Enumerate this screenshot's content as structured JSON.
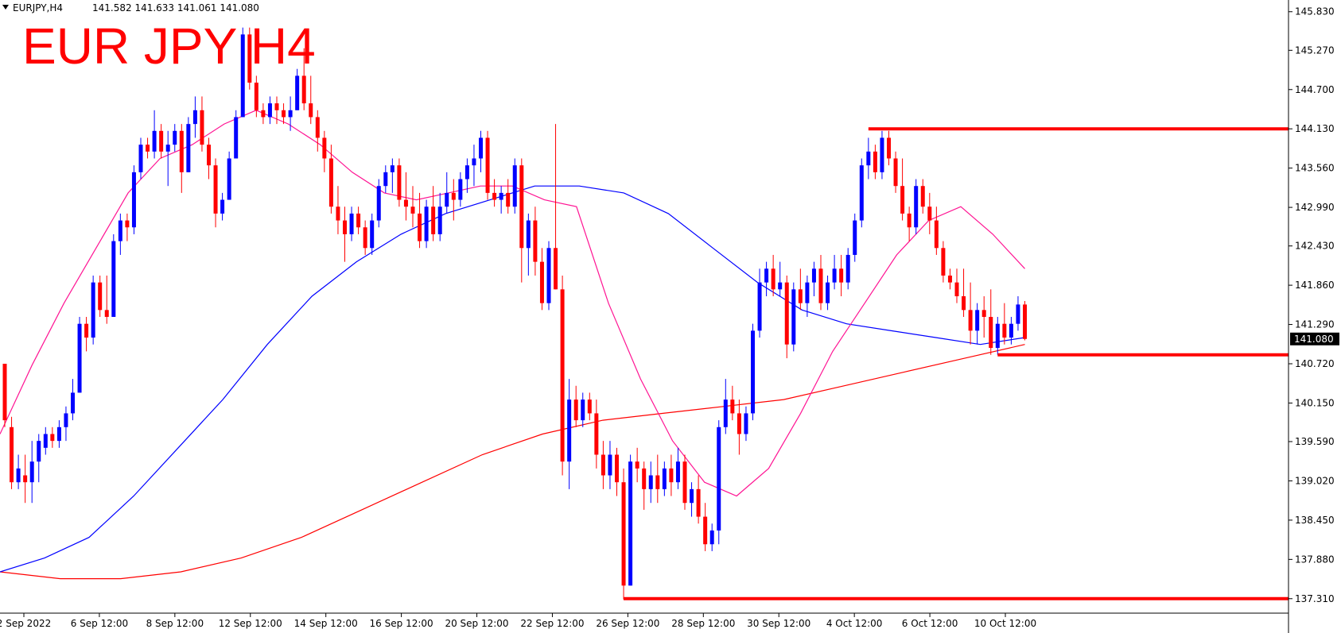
{
  "header": {
    "symbol_label": "EURJPY,H4",
    "ohlc": "141.582 141.633 141.061 141.080"
  },
  "chart_data": {
    "type": "candlestick",
    "title": "EUR JPY H4",
    "instrument": "EURJPY",
    "timeframe": "H4",
    "current_price": "141.080",
    "ylim": [
      137.1,
      146.0
    ],
    "y_ticks": [
      "145.830",
      "145.270",
      "144.700",
      "144.130",
      "143.560",
      "142.990",
      "142.430",
      "141.860",
      "141.290",
      "140.720",
      "140.150",
      "139.590",
      "139.020",
      "138.450",
      "137.880",
      "137.310"
    ],
    "x_ticks": [
      "2 Sep 2022",
      "6 Sep 12:00",
      "8 Sep 12:00",
      "12 Sep 12:00",
      "14 Sep 12:00",
      "16 Sep 12:00",
      "20 Sep 12:00",
      "22 Sep 12:00",
      "26 Sep 12:00",
      "28 Sep 12:00",
      "30 Sep 12:00",
      "4 Oct 12:00",
      "6 Oct 12:00",
      "10 Oct 12:00"
    ],
    "colors": {
      "bull": "#0000ff",
      "bear": "#ff0000",
      "ma_fast": "#ff1493",
      "ma_mid": "#0000ff",
      "ma_slow": "#ff0000",
      "levels": "#ff0000"
    },
    "candles": [
      [
        140.72,
        140.72,
        139.8,
        139.9
      ],
      [
        139.8,
        139.95,
        138.9,
        139.0
      ],
      [
        139.0,
        139.4,
        138.9,
        139.2
      ],
      [
        139.1,
        139.4,
        138.7,
        139.0
      ],
      [
        139.0,
        139.6,
        138.7,
        139.3
      ],
      [
        139.3,
        139.7,
        139.0,
        139.6
      ],
      [
        139.5,
        139.8,
        139.4,
        139.7
      ],
      [
        139.7,
        139.8,
        139.5,
        139.6
      ],
      [
        139.6,
        139.9,
        139.5,
        139.8
      ],
      [
        139.8,
        140.1,
        139.6,
        140.0
      ],
      [
        140.0,
        140.5,
        139.9,
        140.3
      ],
      [
        140.3,
        141.4,
        140.3,
        141.3
      ],
      [
        141.3,
        141.4,
        140.9,
        141.1
      ],
      [
        141.1,
        142.0,
        141.0,
        141.9
      ],
      [
        141.9,
        142.0,
        141.4,
        141.5
      ],
      [
        141.5,
        142.0,
        141.3,
        141.4
      ],
      [
        141.4,
        142.6,
        141.4,
        142.5
      ],
      [
        142.5,
        142.9,
        142.3,
        142.8
      ],
      [
        142.8,
        142.9,
        142.5,
        142.7
      ],
      [
        142.7,
        143.6,
        142.6,
        143.5
      ],
      [
        143.5,
        144.0,
        143.4,
        143.9
      ],
      [
        143.9,
        144.0,
        143.7,
        143.8
      ],
      [
        143.8,
        144.4,
        143.7,
        144.1
      ],
      [
        144.1,
        144.2,
        143.7,
        143.8
      ],
      [
        143.8,
        144.1,
        143.3,
        143.9
      ],
      [
        143.9,
        144.2,
        143.8,
        144.1
      ],
      [
        144.1,
        144.2,
        143.2,
        143.5
      ],
      [
        143.5,
        144.3,
        143.5,
        144.2
      ],
      [
        144.2,
        144.6,
        144.0,
        144.4
      ],
      [
        144.4,
        144.6,
        143.8,
        143.9
      ],
      [
        143.9,
        144.0,
        143.4,
        143.6
      ],
      [
        143.6,
        143.7,
        142.7,
        142.9
      ],
      [
        142.9,
        143.2,
        142.8,
        143.1
      ],
      [
        143.1,
        143.8,
        143.1,
        143.7
      ],
      [
        143.7,
        144.4,
        143.7,
        144.3
      ],
      [
        144.3,
        145.6,
        144.3,
        145.5
      ],
      [
        145.5,
        145.6,
        144.7,
        144.8
      ],
      [
        144.8,
        144.9,
        144.3,
        144.4
      ],
      [
        144.4,
        144.5,
        144.2,
        144.3
      ],
      [
        144.3,
        144.6,
        144.2,
        144.5
      ],
      [
        144.5,
        144.6,
        144.2,
        144.4
      ],
      [
        144.4,
        144.5,
        144.2,
        144.3
      ],
      [
        144.3,
        144.6,
        144.1,
        144.4
      ],
      [
        144.4,
        145.0,
        144.4,
        144.9
      ],
      [
        144.9,
        145.3,
        144.4,
        144.5
      ],
      [
        144.5,
        144.9,
        144.2,
        144.3
      ],
      [
        144.3,
        144.4,
        143.8,
        144.0
      ],
      [
        144.0,
        144.1,
        143.5,
        143.7
      ],
      [
        143.7,
        143.9,
        142.9,
        143.0
      ],
      [
        143.0,
        143.3,
        142.6,
        142.8
      ],
      [
        142.8,
        143.0,
        142.2,
        142.6
      ],
      [
        142.6,
        143.0,
        142.5,
        142.9
      ],
      [
        142.9,
        143.0,
        142.6,
        142.7
      ],
      [
        142.7,
        142.8,
        142.3,
        142.4
      ],
      [
        142.4,
        142.9,
        142.3,
        142.8
      ],
      [
        142.8,
        143.4,
        142.7,
        143.3
      ],
      [
        143.3,
        143.6,
        143.2,
        143.5
      ],
      [
        143.5,
        143.7,
        143.2,
        143.6
      ],
      [
        143.6,
        143.7,
        143.0,
        143.1
      ],
      [
        143.1,
        143.5,
        142.8,
        143.0
      ],
      [
        143.0,
        143.3,
        142.7,
        142.9
      ],
      [
        142.9,
        143.2,
        142.4,
        142.5
      ],
      [
        142.5,
        143.1,
        142.4,
        143.0
      ],
      [
        143.0,
        143.3,
        142.5,
        142.6
      ],
      [
        142.6,
        143.2,
        142.5,
        143.0
      ],
      [
        143.0,
        143.5,
        142.9,
        143.2
      ],
      [
        143.2,
        143.4,
        142.8,
        143.1
      ],
      [
        143.1,
        143.5,
        143.0,
        143.4
      ],
      [
        143.4,
        143.7,
        143.2,
        143.6
      ],
      [
        143.6,
        143.9,
        143.3,
        143.7
      ],
      [
        143.7,
        144.1,
        143.5,
        144.0
      ],
      [
        144.0,
        144.1,
        143.1,
        143.2
      ],
      [
        143.2,
        143.4,
        143.0,
        143.1
      ],
      [
        143.1,
        143.3,
        142.9,
        143.2
      ],
      [
        143.2,
        143.4,
        142.9,
        143.0
      ],
      [
        143.0,
        143.7,
        142.9,
        143.6
      ],
      [
        143.6,
        143.7,
        141.9,
        142.4
      ],
      [
        142.4,
        142.9,
        142.0,
        142.8
      ],
      [
        142.8,
        143.0,
        142.0,
        142.2
      ],
      [
        142.2,
        142.4,
        141.5,
        141.6
      ],
      [
        141.6,
        142.5,
        141.5,
        142.4
      ],
      [
        142.4,
        144.2,
        141.8,
        141.8
      ],
      [
        141.8,
        142.0,
        139.1,
        139.3
      ],
      [
        139.3,
        140.5,
        138.9,
        140.2
      ],
      [
        140.2,
        140.4,
        139.8,
        139.9
      ],
      [
        139.9,
        140.3,
        139.8,
        140.2
      ],
      [
        140.2,
        140.3,
        139.9,
        140.0
      ],
      [
        140.0,
        140.2,
        139.2,
        139.4
      ],
      [
        139.4,
        139.6,
        138.9,
        139.1
      ],
      [
        139.1,
        139.6,
        138.9,
        139.4
      ],
      [
        139.4,
        139.5,
        138.8,
        139.0
      ],
      [
        139.0,
        139.2,
        137.3,
        137.5
      ],
      [
        137.5,
        139.4,
        137.5,
        139.3
      ],
      [
        139.3,
        139.5,
        139.0,
        139.2
      ],
      [
        139.2,
        139.3,
        138.6,
        138.9
      ],
      [
        138.9,
        139.3,
        138.7,
        139.1
      ],
      [
        139.1,
        139.4,
        138.7,
        138.9
      ],
      [
        138.9,
        139.3,
        138.8,
        139.2
      ],
      [
        139.2,
        139.4,
        138.8,
        139.0
      ],
      [
        139.0,
        139.5,
        138.9,
        139.3
      ],
      [
        139.3,
        139.4,
        138.6,
        138.7
      ],
      [
        138.7,
        139.0,
        138.5,
        138.9
      ],
      [
        138.9,
        139.1,
        138.4,
        138.5
      ],
      [
        138.5,
        138.7,
        138.0,
        138.1
      ],
      [
        138.1,
        138.4,
        138.0,
        138.3
      ],
      [
        138.3,
        139.9,
        138.1,
        139.8
      ],
      [
        139.8,
        140.5,
        139.7,
        140.2
      ],
      [
        140.2,
        140.4,
        139.9,
        140.0
      ],
      [
        140.0,
        140.2,
        139.4,
        139.7
      ],
      [
        139.7,
        140.1,
        139.6,
        140.0
      ],
      [
        140.0,
        141.3,
        139.9,
        141.2
      ],
      [
        141.2,
        142.1,
        141.1,
        141.9
      ],
      [
        141.9,
        142.2,
        141.7,
        142.1
      ],
      [
        142.1,
        142.3,
        141.7,
        141.8
      ],
      [
        141.8,
        142.2,
        141.7,
        141.9
      ],
      [
        141.9,
        142.0,
        140.8,
        141.0
      ],
      [
        141.0,
        141.9,
        140.9,
        141.8
      ],
      [
        141.8,
        142.1,
        141.5,
        141.6
      ],
      [
        141.6,
        142.0,
        141.4,
        141.9
      ],
      [
        141.9,
        142.2,
        141.7,
        142.1
      ],
      [
        142.1,
        142.3,
        141.5,
        141.6
      ],
      [
        141.6,
        142.0,
        141.5,
        141.9
      ],
      [
        141.9,
        142.3,
        141.8,
        142.1
      ],
      [
        142.1,
        142.3,
        141.7,
        141.9
      ],
      [
        141.9,
        142.4,
        141.8,
        142.3
      ],
      [
        142.3,
        142.9,
        142.2,
        142.8
      ],
      [
        142.8,
        143.7,
        142.7,
        143.6
      ],
      [
        143.6,
        144.0,
        143.4,
        143.8
      ],
      [
        143.8,
        143.9,
        143.4,
        143.5
      ],
      [
        143.5,
        144.1,
        143.4,
        144.0
      ],
      [
        144.0,
        144.1,
        143.6,
        143.7
      ],
      [
        143.7,
        143.8,
        143.2,
        143.3
      ],
      [
        143.3,
        143.7,
        142.8,
        142.9
      ],
      [
        142.9,
        143.0,
        142.5,
        142.7
      ],
      [
        142.7,
        143.4,
        142.6,
        143.3
      ],
      [
        143.3,
        143.4,
        142.9,
        143.0
      ],
      [
        143.0,
        143.2,
        142.6,
        142.8
      ],
      [
        142.8,
        143.0,
        142.3,
        142.4
      ],
      [
        142.4,
        142.5,
        141.9,
        142.0
      ],
      [
        142.0,
        142.1,
        141.8,
        141.9
      ],
      [
        141.9,
        142.1,
        141.6,
        141.7
      ],
      [
        141.7,
        142.1,
        141.4,
        141.5
      ],
      [
        141.5,
        141.9,
        141.0,
        141.2
      ],
      [
        141.2,
        141.6,
        141.0,
        141.5
      ],
      [
        141.5,
        141.7,
        141.1,
        141.4
      ],
      [
        141.4,
        141.8,
        140.85,
        140.95
      ],
      [
        140.95,
        141.4,
        140.85,
        141.3
      ],
      [
        141.3,
        141.6,
        141.0,
        141.1
      ],
      [
        141.1,
        141.4,
        141.0,
        141.3
      ],
      [
        141.3,
        141.7,
        141.2,
        141.58
      ],
      [
        141.58,
        141.63,
        141.06,
        141.08
      ]
    ],
    "moving_averages": {
      "fast": [
        139.7,
        140.7,
        141.6,
        142.4,
        143.2,
        143.7,
        143.9,
        144.2,
        144.4,
        144.2,
        143.9,
        143.5,
        143.2,
        143.1,
        143.2,
        143.3,
        143.3,
        143.1,
        143.0,
        141.6,
        140.5,
        139.6,
        139.0,
        138.8,
        139.2,
        140.0,
        140.9,
        141.6,
        142.3,
        142.8,
        143.0,
        142.6,
        142.1
      ],
      "mid": [
        137.7,
        137.9,
        138.2,
        138.8,
        139.5,
        140.2,
        141.0,
        141.7,
        142.2,
        142.6,
        142.9,
        143.1,
        143.3,
        143.3,
        143.2,
        142.9,
        142.4,
        141.9,
        141.5,
        141.3,
        141.2,
        141.1,
        141.0,
        141.1
      ],
      "slow": [
        137.7,
        137.6,
        137.6,
        137.7,
        137.9,
        138.2,
        138.6,
        139.0,
        139.4,
        139.7,
        139.9,
        140.0,
        140.1,
        140.2,
        140.4,
        140.6,
        140.8,
        141.0
      ]
    },
    "horizontal_levels": [
      {
        "price": 144.13,
        "from_candle": 127,
        "to_right_edge": true
      },
      {
        "price": 140.85,
        "from_candle": 146,
        "to_right_edge": true
      },
      {
        "price": 137.31,
        "from_candle": 91,
        "to_right_edge": true
      }
    ]
  }
}
